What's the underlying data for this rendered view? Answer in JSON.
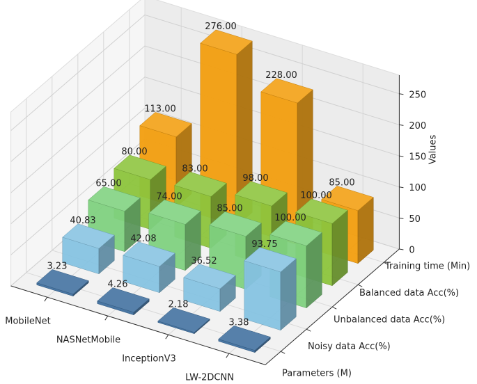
{
  "chart_data": {
    "type": "bar3d",
    "categories": [
      "MobileNet",
      "NASNetMobile",
      "InceptionV3",
      "LW-2DCNN"
    ],
    "series": [
      {
        "name": "Parameters (M)",
        "color": "#3f6f9e",
        "values": [
          3.23,
          4.26,
          2.18,
          3.38
        ],
        "value_labels": [
          "3.23",
          "4.26",
          "2.18",
          "3.38"
        ]
      },
      {
        "name": "Noisy data Acc(%)",
        "color": "#86c3e2",
        "values": [
          40.83,
          42.08,
          36.52,
          93.75
        ],
        "value_labels": [
          "40.83",
          "42.08",
          "36.52",
          "93.75"
        ]
      },
      {
        "name": "Unbalanced data Acc(%)",
        "color": "#7fd17f",
        "values": [
          65,
          74,
          85,
          100
        ],
        "value_labels": [
          "65.00",
          "74.00",
          "85.00",
          "100.00"
        ]
      },
      {
        "name": "Balanced data Acc(%)",
        "color": "#8cc43c",
        "values": [
          80,
          83,
          98,
          100
        ],
        "value_labels": [
          "80.00",
          "83.00",
          "98.00",
          "100.00"
        ]
      },
      {
        "name": "Training time (Min)",
        "color": "#f29e0f",
        "values": [
          113,
          276,
          228,
          85
        ],
        "value_labels": [
          "113.00",
          "276.00",
          "228.00",
          "85.00"
        ]
      }
    ],
    "ylabel": "Values",
    "ylim": [
      0,
      280
    ],
    "yticks": [
      0,
      50,
      100,
      150,
      200,
      250
    ],
    "grid": true
  }
}
